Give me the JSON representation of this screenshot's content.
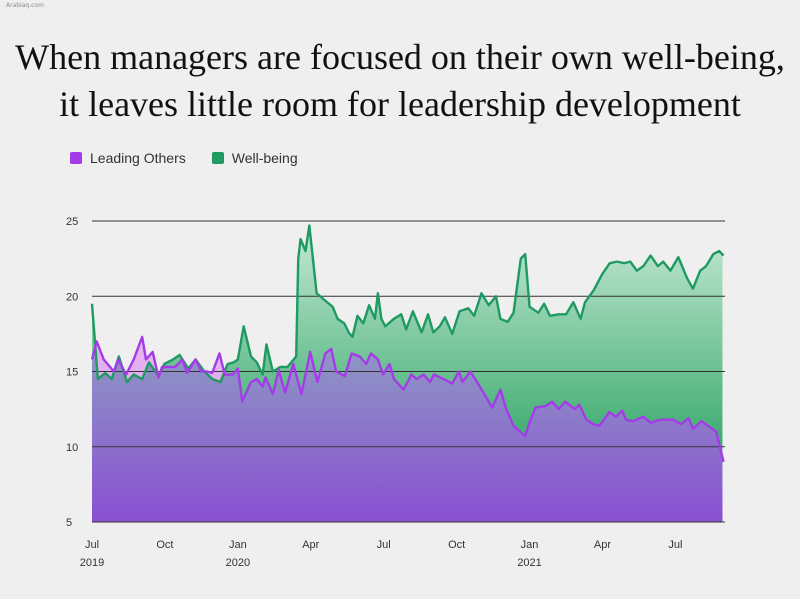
{
  "watermark": "Arabiaq.com",
  "title": {
    "line1": "When managers are focused on their own well-being,",
    "line2": "it leaves little room for leadership development"
  },
  "colors": {
    "leading": "#a53be8",
    "wellbeing": "#1e9a62",
    "grid": "#333333",
    "background": "#efefef"
  },
  "chart_data": {
    "type": "line",
    "title": "When managers are focused on their own well-being, it leaves little room for leadership development",
    "grid": true,
    "legend_position": "top-left",
    "ylim": [
      5,
      25
    ],
    "yticks": [
      5,
      10,
      15,
      20,
      25
    ],
    "xlim": [
      2019.5,
      2021.67
    ],
    "xticks": [
      {
        "x": 2019.5,
        "label": "Jul",
        "year": "2019"
      },
      {
        "x": 2019.75,
        "label": "Oct",
        "year": ""
      },
      {
        "x": 2020.0,
        "label": "Jan",
        "year": "2020"
      },
      {
        "x": 2020.25,
        "label": "Apr",
        "year": ""
      },
      {
        "x": 2020.5,
        "label": "Jul",
        "year": ""
      },
      {
        "x": 2020.75,
        "label": "Oct",
        "year": ""
      },
      {
        "x": 2021.0,
        "label": "Jan",
        "year": "2021"
      },
      {
        "x": 2021.25,
        "label": "Apr",
        "year": ""
      },
      {
        "x": 2021.5,
        "label": "Jul",
        "year": ""
      }
    ],
    "series": [
      {
        "name": "Leading Others",
        "points": [
          [
            2019.5,
            15.8
          ],
          [
            2019.516,
            17.0
          ],
          [
            2019.54,
            15.8
          ],
          [
            2019.575,
            15.0
          ],
          [
            2019.59,
            15.8
          ],
          [
            2019.617,
            14.8
          ],
          [
            2019.643,
            15.8
          ],
          [
            2019.672,
            17.3
          ],
          [
            2019.685,
            15.8
          ],
          [
            2019.708,
            16.3
          ],
          [
            2019.728,
            14.6
          ],
          [
            2019.74,
            15.3
          ],
          [
            2019.785,
            15.3
          ],
          [
            2019.81,
            15.8
          ],
          [
            2019.826,
            14.9
          ],
          [
            2019.855,
            15.8
          ],
          [
            2019.875,
            15.0
          ],
          [
            2019.895,
            15.0
          ],
          [
            2019.912,
            14.9
          ],
          [
            2019.937,
            16.2
          ],
          [
            2019.955,
            14.8
          ],
          [
            2019.983,
            14.8
          ],
          [
            2020.0,
            15.2
          ],
          [
            2020.015,
            13.0
          ],
          [
            2020.045,
            14.3
          ],
          [
            2020.065,
            14.5
          ],
          [
            2020.085,
            14.0
          ],
          [
            2020.095,
            14.6
          ],
          [
            2020.12,
            13.5
          ],
          [
            2020.14,
            15.1
          ],
          [
            2020.162,
            13.6
          ],
          [
            2020.19,
            15.5
          ],
          [
            2020.218,
            13.5
          ],
          [
            2020.248,
            16.3
          ],
          [
            2020.273,
            14.3
          ],
          [
            2020.3,
            16.2
          ],
          [
            2020.32,
            16.5
          ],
          [
            2020.337,
            15.0
          ],
          [
            2020.367,
            14.7
          ],
          [
            2020.39,
            16.2
          ],
          [
            2020.418,
            16.0
          ],
          [
            2020.44,
            15.5
          ],
          [
            2020.456,
            16.2
          ],
          [
            2020.48,
            15.8
          ],
          [
            2020.498,
            14.8
          ],
          [
            2020.52,
            15.5
          ],
          [
            2020.535,
            14.5
          ],
          [
            2020.568,
            13.8
          ],
          [
            2020.595,
            14.8
          ],
          [
            2020.612,
            14.5
          ],
          [
            2020.637,
            14.8
          ],
          [
            2020.659,
            14.3
          ],
          [
            2020.672,
            14.8
          ],
          [
            2020.705,
            14.5
          ],
          [
            2020.735,
            14.2
          ],
          [
            2020.758,
            15.0
          ],
          [
            2020.77,
            14.3
          ],
          [
            2020.797,
            15.0
          ],
          [
            2020.82,
            14.3
          ],
          [
            2020.845,
            13.5
          ],
          [
            2020.872,
            12.6
          ],
          [
            2020.9,
            13.8
          ],
          [
            2020.92,
            12.5
          ],
          [
            2020.945,
            11.4
          ],
          [
            2020.985,
            10.7
          ],
          [
            2021.0,
            11.6
          ],
          [
            2021.02,
            12.6
          ],
          [
            2021.055,
            12.7
          ],
          [
            2021.077,
            13.0
          ],
          [
            2021.1,
            12.5
          ],
          [
            2021.122,
            13.0
          ],
          [
            2021.155,
            12.5
          ],
          [
            2021.17,
            12.8
          ],
          [
            2021.195,
            11.8
          ],
          [
            2021.218,
            11.5
          ],
          [
            2021.24,
            11.4
          ],
          [
            2021.273,
            12.3
          ],
          [
            2021.296,
            12.0
          ],
          [
            2021.318,
            12.4
          ],
          [
            2021.33,
            11.8
          ],
          [
            2021.355,
            11.7
          ],
          [
            2021.39,
            12.0
          ],
          [
            2021.415,
            11.6
          ],
          [
            2021.45,
            11.8
          ],
          [
            2021.493,
            11.8
          ],
          [
            2021.52,
            11.5
          ],
          [
            2021.545,
            11.9
          ],
          [
            2021.56,
            11.2
          ],
          [
            2021.59,
            11.7
          ],
          [
            2021.64,
            11.0
          ],
          [
            2021.665,
            9.0
          ]
        ]
      },
      {
        "name": "Well-being",
        "points": [
          [
            2019.5,
            19.5
          ],
          [
            2019.52,
            14.5
          ],
          [
            2019.545,
            14.9
          ],
          [
            2019.568,
            14.5
          ],
          [
            2019.592,
            16.0
          ],
          [
            2019.62,
            14.3
          ],
          [
            2019.643,
            14.8
          ],
          [
            2019.672,
            14.5
          ],
          [
            2019.695,
            15.6
          ],
          [
            2019.728,
            14.7
          ],
          [
            2019.748,
            15.5
          ],
          [
            2019.778,
            15.8
          ],
          [
            2019.8,
            16.1
          ],
          [
            2019.83,
            15.2
          ],
          [
            2019.855,
            15.8
          ],
          [
            2019.885,
            15.0
          ],
          [
            2019.912,
            14.5
          ],
          [
            2019.94,
            14.3
          ],
          [
            2019.965,
            15.5
          ],
          [
            2019.985,
            15.6
          ],
          [
            2020.0,
            15.8
          ],
          [
            2020.02,
            18.0
          ],
          [
            2020.045,
            16.0
          ],
          [
            2020.065,
            15.6
          ],
          [
            2020.085,
            14.8
          ],
          [
            2020.098,
            16.8
          ],
          [
            2020.12,
            15.0
          ],
          [
            2020.145,
            15.3
          ],
          [
            2020.17,
            15.3
          ],
          [
            2020.2,
            16.0
          ],
          [
            2020.207,
            22.5
          ],
          [
            2020.215,
            23.8
          ],
          [
            2020.232,
            23.0
          ],
          [
            2020.245,
            24.7
          ],
          [
            2020.27,
            20.2
          ],
          [
            2020.3,
            19.7
          ],
          [
            2020.325,
            19.3
          ],
          [
            2020.342,
            18.5
          ],
          [
            2020.365,
            18.2
          ],
          [
            2020.38,
            17.6
          ],
          [
            2020.393,
            17.3
          ],
          [
            2020.41,
            18.7
          ],
          [
            2020.43,
            18.2
          ],
          [
            2020.45,
            19.4
          ],
          [
            2020.47,
            18.5
          ],
          [
            2020.48,
            20.2
          ],
          [
            2020.492,
            18.5
          ],
          [
            2020.505,
            18.0
          ],
          [
            2020.535,
            18.5
          ],
          [
            2020.56,
            18.8
          ],
          [
            2020.577,
            17.8
          ],
          [
            2020.6,
            19.0
          ],
          [
            2020.63,
            17.6
          ],
          [
            2020.652,
            18.8
          ],
          [
            2020.67,
            17.6
          ],
          [
            2020.692,
            18.0
          ],
          [
            2020.71,
            18.6
          ],
          [
            2020.735,
            17.5
          ],
          [
            2020.76,
            19.0
          ],
          [
            2020.79,
            19.2
          ],
          [
            2020.81,
            18.7
          ],
          [
            2020.835,
            20.2
          ],
          [
            2020.86,
            19.4
          ],
          [
            2020.885,
            20.0
          ],
          [
            2020.9,
            18.5
          ],
          [
            2020.925,
            18.3
          ],
          [
            2020.945,
            18.9
          ],
          [
            2020.97,
            22.5
          ],
          [
            2020.985,
            22.8
          ],
          [
            2021.0,
            19.3
          ],
          [
            2021.03,
            18.9
          ],
          [
            2021.05,
            19.5
          ],
          [
            2021.07,
            18.7
          ],
          [
            2021.1,
            18.8
          ],
          [
            2021.125,
            18.8
          ],
          [
            2021.15,
            19.6
          ],
          [
            2021.175,
            18.5
          ],
          [
            2021.19,
            19.6
          ],
          [
            2021.22,
            20.4
          ],
          [
            2021.25,
            21.5
          ],
          [
            2021.275,
            22.2
          ],
          [
            2021.3,
            22.3
          ],
          [
            2021.325,
            22.2
          ],
          [
            2021.345,
            22.3
          ],
          [
            2021.368,
            21.7
          ],
          [
            2021.39,
            22.0
          ],
          [
            2021.415,
            22.7
          ],
          [
            2021.44,
            22.0
          ],
          [
            2021.458,
            22.3
          ],
          [
            2021.483,
            21.7
          ],
          [
            2021.51,
            22.6
          ],
          [
            2021.54,
            21.2
          ],
          [
            2021.56,
            20.5
          ],
          [
            2021.585,
            21.7
          ],
          [
            2021.605,
            22.0
          ],
          [
            2021.63,
            22.8
          ],
          [
            2021.65,
            23.0
          ],
          [
            2021.665,
            22.7
          ]
        ]
      }
    ]
  }
}
